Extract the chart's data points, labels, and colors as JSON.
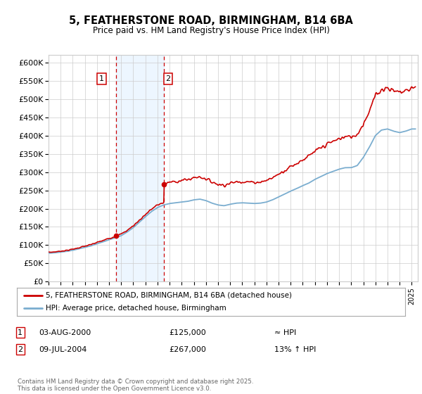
{
  "title": "5, FEATHERSTONE ROAD, BIRMINGHAM, B14 6BA",
  "subtitle": "Price paid vs. HM Land Registry's House Price Index (HPI)",
  "ylabel_ticks": [
    "£0",
    "£50K",
    "£100K",
    "£150K",
    "£200K",
    "£250K",
    "£300K",
    "£350K",
    "£400K",
    "£450K",
    "£500K",
    "£550K",
    "£600K"
  ],
  "ylim": [
    0,
    620000
  ],
  "ytick_vals": [
    0,
    50000,
    100000,
    150000,
    200000,
    250000,
    300000,
    350000,
    400000,
    450000,
    500000,
    550000,
    600000
  ],
  "xlim_start": 1995.0,
  "xlim_end": 2025.5,
  "sale1_x": 2000.58,
  "sale1_y": 125000,
  "sale2_x": 2004.52,
  "sale2_y": 267000,
  "sale1_label": "1",
  "sale2_label": "2",
  "shade_x1": 2000.58,
  "shade_x2": 2004.52,
  "legend_line1": "5, FEATHERSTONE ROAD, BIRMINGHAM, B14 6BA (detached house)",
  "legend_line2": "HPI: Average price, detached house, Birmingham",
  "table_row1": [
    "1",
    "03-AUG-2000",
    "£125,000",
    "≈ HPI"
  ],
  "table_row2": [
    "2",
    "09-JUL-2004",
    "£267,000",
    "13% ↑ HPI"
  ],
  "footer": "Contains HM Land Registry data © Crown copyright and database right 2025.\nThis data is licensed under the Open Government Licence v3.0.",
  "red_color": "#cc0000",
  "blue_color": "#7aadcf",
  "shade_color": "#ddeeff",
  "grid_color": "#cccccc",
  "bg_color": "#ffffff",
  "years_hpi": [
    1995,
    1995.5,
    1996,
    1996.5,
    1997,
    1997.5,
    1998,
    1998.5,
    1999,
    1999.5,
    2000,
    2000.5,
    2001,
    2001.5,
    2002,
    2002.5,
    2003,
    2003.5,
    2004,
    2004.5,
    2005,
    2005.5,
    2006,
    2006.5,
    2007,
    2007.5,
    2008,
    2008.5,
    2009,
    2009.5,
    2010,
    2010.5,
    2011,
    2011.5,
    2012,
    2012.5,
    2013,
    2013.5,
    2014,
    2014.5,
    2015,
    2015.5,
    2016,
    2016.5,
    2017,
    2017.5,
    2018,
    2018.5,
    2019,
    2019.5,
    2020,
    2020.5,
    2021,
    2021.5,
    2022,
    2022.5,
    2023,
    2023.5,
    2024,
    2024.5,
    2025
  ],
  "hpi_vals": [
    78000,
    79000,
    81000,
    83000,
    86000,
    90000,
    94000,
    98000,
    104000,
    109000,
    115000,
    120000,
    126000,
    136000,
    148000,
    163000,
    178000,
    192000,
    203000,
    210000,
    214000,
    216000,
    218000,
    220000,
    224000,
    226000,
    222000,
    215000,
    210000,
    208000,
    212000,
    215000,
    216000,
    215000,
    214000,
    215000,
    218000,
    224000,
    232000,
    240000,
    248000,
    255000,
    263000,
    270000,
    280000,
    288000,
    296000,
    302000,
    308000,
    312000,
    312000,
    318000,
    340000,
    368000,
    400000,
    415000,
    418000,
    412000,
    408000,
    412000,
    418000
  ]
}
